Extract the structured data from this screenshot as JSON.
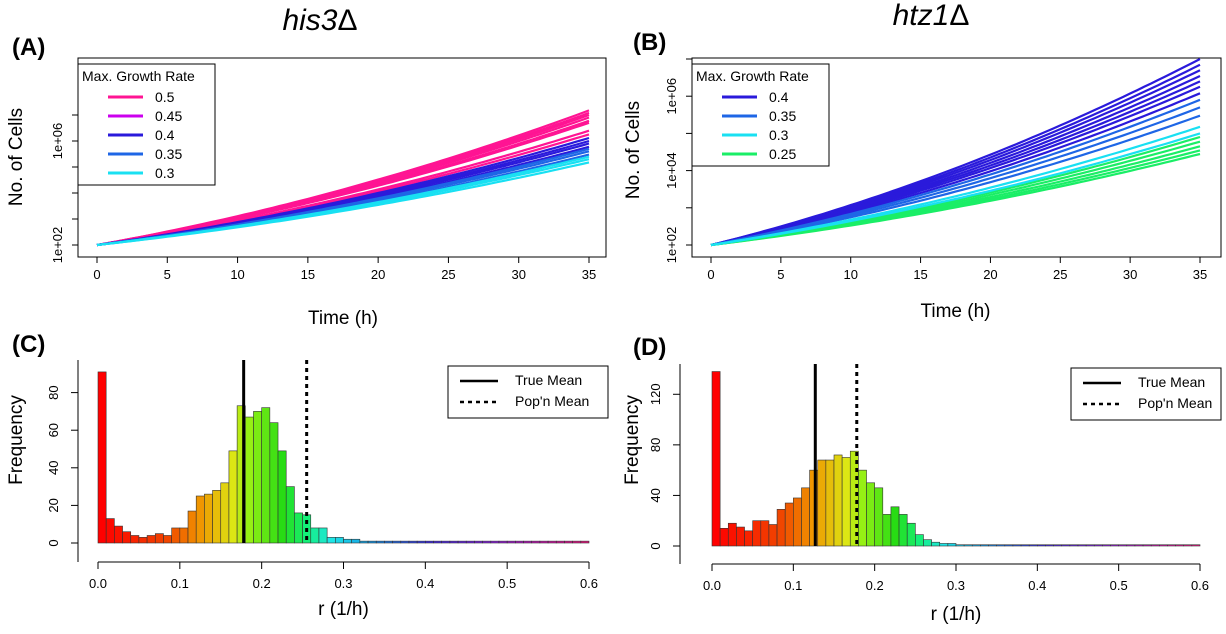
{
  "chart_data": [
    {
      "panel": "(A)",
      "title_main": "his3",
      "title_suffix": "Δ",
      "type": "line",
      "xlabel": "Time (h)",
      "ylabel": "No. of Cells",
      "y_scale": "log",
      "xlim": [
        0,
        35
      ],
      "x_ticks": [
        0,
        5,
        10,
        15,
        20,
        25,
        30,
        35
      ],
      "ylim_log10": [
        1.95,
        7.3
      ],
      "y_labeled_ticks": [
        {
          "value": 100,
          "label": "1e+02"
        },
        {
          "value": 1000000,
          "label": "1e+06"
        }
      ],
      "y_minor_ticks": [
        1000,
        10000,
        100000,
        10000000
      ],
      "legend": {
        "title": "Max. Growth Rate",
        "placement": "top-left"
      },
      "series": [
        {
          "name": "0.5",
          "color": "#ff1493",
          "final_values": [
            15000000,
            12000000,
            10000000,
            8000000,
            6000000,
            5000000,
            2500000,
            1800000
          ]
        },
        {
          "name": "0.45",
          "color": "#cc00ee",
          "final_values": []
        },
        {
          "name": "0.4",
          "color": "#2a1adb",
          "final_values": [
            1300000,
            1000000,
            800000,
            600000
          ]
        },
        {
          "name": "0.35",
          "color": "#1e66e6",
          "final_values": [
            500000,
            400000,
            300000
          ]
        },
        {
          "name": "0.3",
          "color": "#19e0f2",
          "final_values": [
            250000,
            200000,
            150000
          ]
        }
      ],
      "x": [
        0,
        35
      ],
      "start_value": 100
    },
    {
      "panel": "(B)",
      "title_main": "htz1",
      "title_suffix": "Δ",
      "type": "line",
      "xlabel": "Time (h)",
      "ylabel": "No. of Cells",
      "y_scale": "log",
      "xlim": [
        0,
        35
      ],
      "x_ticks": [
        0,
        5,
        10,
        15,
        20,
        25,
        30,
        35
      ],
      "ylim_log10": [
        1.95,
        7.3
      ],
      "y_labeled_ticks": [
        {
          "value": 100,
          "label": "1e+02"
        },
        {
          "value": 10000,
          "label": "1e+04"
        },
        {
          "value": 1000000,
          "label": "1e+06"
        }
      ],
      "y_minor_ticks": [
        1000,
        100000,
        10000000
      ],
      "legend": {
        "title": "Max. Growth Rate",
        "placement": "top-left"
      },
      "series": [
        {
          "name": "0.4",
          "color": "#2a1adb",
          "final_values": [
            10000000,
            7000000,
            5000000,
            3500000,
            2500000,
            1800000,
            1200000
          ]
        },
        {
          "name": "0.35",
          "color": "#1e66e6",
          "final_values": [
            800000,
            500000,
            300000
          ]
        },
        {
          "name": "0.3",
          "color": "#19e0f2",
          "final_values": [
            150000,
            100000
          ]
        },
        {
          "name": "0.25",
          "color": "#1aee66",
          "final_values": [
            80000,
            60000,
            45000,
            35000,
            28000
          ]
        }
      ],
      "x": [
        0,
        35
      ],
      "start_value": 100
    },
    {
      "panel": "(C)",
      "type": "bar",
      "subtype": "histogram",
      "xlabel": "r (1/h)",
      "ylabel": "Frequency",
      "xlim": [
        0,
        0.6
      ],
      "x_ticks": [
        0.0,
        0.1,
        0.2,
        0.3,
        0.4,
        0.5,
        0.6
      ],
      "ylim": [
        0,
        100
      ],
      "y_ticks": [
        0,
        20,
        40,
        60,
        80
      ],
      "bin_width": 0.01,
      "counts": [
        91,
        13,
        9,
        6,
        4,
        3,
        4,
        5,
        4,
        8,
        8,
        17,
        25,
        26,
        28,
        32,
        49,
        73,
        67,
        70,
        72,
        64,
        49,
        30,
        16,
        15,
        8,
        8,
        3,
        3,
        2,
        2,
        1,
        1,
        1,
        1,
        1,
        1,
        1,
        1,
        1,
        1,
        1,
        1,
        1,
        1,
        1,
        1,
        1,
        1,
        1,
        1,
        1,
        1,
        1,
        1,
        1,
        1,
        1,
        1
      ],
      "true_mean": 0.178,
      "popn_mean": 0.255,
      "legend": {
        "entries": [
          "True Mean",
          "Pop'n Mean"
        ],
        "placement": "top-right"
      }
    },
    {
      "panel": "(D)",
      "type": "bar",
      "subtype": "histogram",
      "xlabel": "r (1/h)",
      "ylabel": "Frequency",
      "xlim": [
        0,
        0.6
      ],
      "x_ticks": [
        0.0,
        0.1,
        0.2,
        0.3,
        0.4,
        0.5,
        0.6
      ],
      "ylim": [
        0,
        140
      ],
      "y_ticks": [
        0,
        40,
        80,
        120
      ],
      "bin_width": 0.01,
      "counts": [
        138,
        14,
        18,
        15,
        12,
        20,
        20,
        17,
        29,
        34,
        38,
        46,
        60,
        68,
        68,
        72,
        70,
        75,
        60,
        50,
        46,
        25,
        31,
        25,
        18,
        9,
        5,
        3,
        2,
        2,
        1,
        1,
        1,
        1,
        1,
        1,
        1,
        1,
        1,
        1,
        1,
        1,
        1,
        1,
        1,
        1,
        1,
        1,
        1,
        1,
        1,
        1,
        1,
        1,
        1,
        1,
        1,
        1,
        1,
        1
      ],
      "true_mean": 0.127,
      "popn_mean": 0.178,
      "legend": {
        "entries": [
          "True Mean",
          "Pop'n Mean"
        ],
        "placement": "top-right"
      }
    }
  ]
}
